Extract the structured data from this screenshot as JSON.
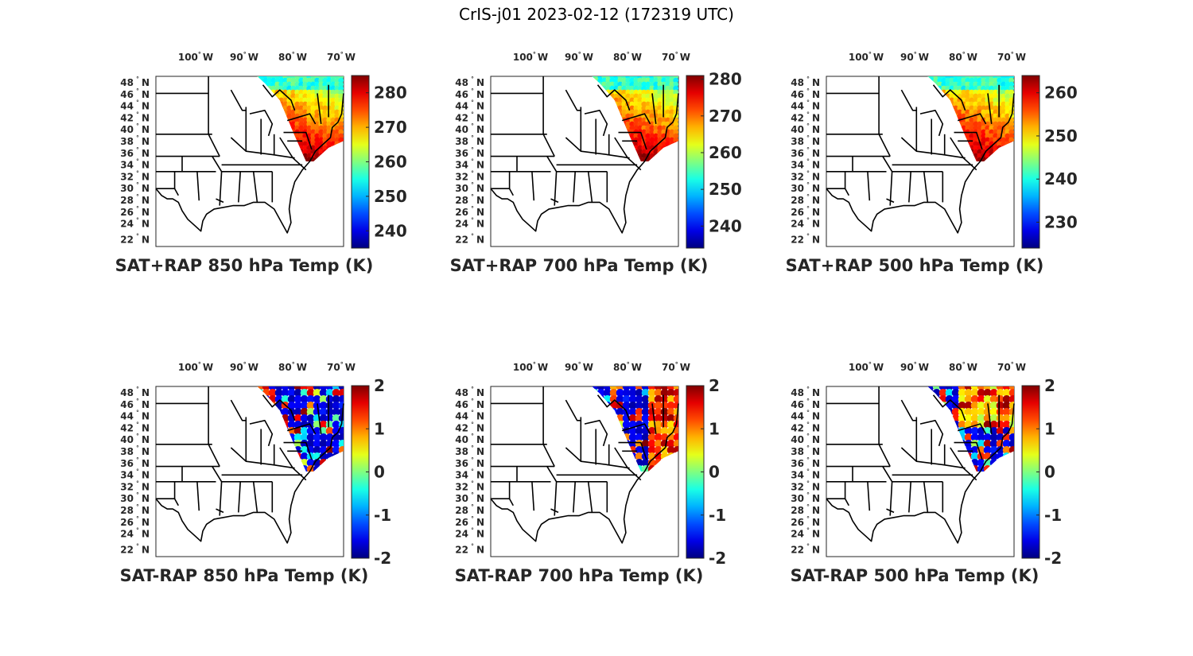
{
  "figure": {
    "title": "CrIS-j01 2023-02-12 (172319 UTC)"
  },
  "map_axes": {
    "lon_labels": [
      "100",
      "90",
      "80",
      "70"
    ],
    "lon_suffix": "W",
    "lat_labels": [
      "48",
      "46",
      "44",
      "42",
      "40",
      "38",
      "36",
      "34",
      "32",
      "30",
      "28",
      "26",
      "24",
      "22"
    ],
    "lat_suffix": "N",
    "degree_symbol": "°"
  },
  "colormap": "jet",
  "panels": [
    {
      "id": "sat-plus-rap-850",
      "title": "SAT+RAP 850 hPa Temp (K)",
      "field": "temperature",
      "colorbar": {
        "ticks": [
          "280",
          "270",
          "260",
          "250",
          "240"
        ],
        "min": 235,
        "max": 285
      }
    },
    {
      "id": "sat-plus-rap-700",
      "title": "SAT+RAP 700 hPa Temp (K)",
      "field": "temperature",
      "colorbar": {
        "ticks": [
          "280",
          "270",
          "260",
          "250",
          "240"
        ],
        "min": 234,
        "max": 281
      }
    },
    {
      "id": "sat-plus-rap-500",
      "title": "SAT+RAP 500 hPa Temp (K)",
      "field": "temperature",
      "colorbar": {
        "ticks": [
          "260",
          "250",
          "240",
          "230"
        ],
        "min": 224,
        "max": 264
      }
    },
    {
      "id": "sat-minus-rap-850",
      "title": "SAT-RAP 850 hPa Temp (K)",
      "field": "difference",
      "colorbar": {
        "ticks": [
          "2",
          "1",
          "0",
          "-1",
          "-2"
        ],
        "min": -2,
        "max": 2
      }
    },
    {
      "id": "sat-minus-rap-700",
      "title": "SAT-RAP 700 hPa Temp (K)",
      "field": "difference",
      "colorbar": {
        "ticks": [
          "2",
          "1",
          "0",
          "-1",
          "-2"
        ],
        "min": -2,
        "max": 2
      }
    },
    {
      "id": "sat-minus-rap-500",
      "title": "SAT-RAP 500 hPa Temp (K)",
      "field": "difference",
      "colorbar": {
        "ticks": [
          "2",
          "1",
          "0",
          "-1",
          "-2"
        ],
        "min": -2,
        "max": 2
      }
    }
  ]
}
